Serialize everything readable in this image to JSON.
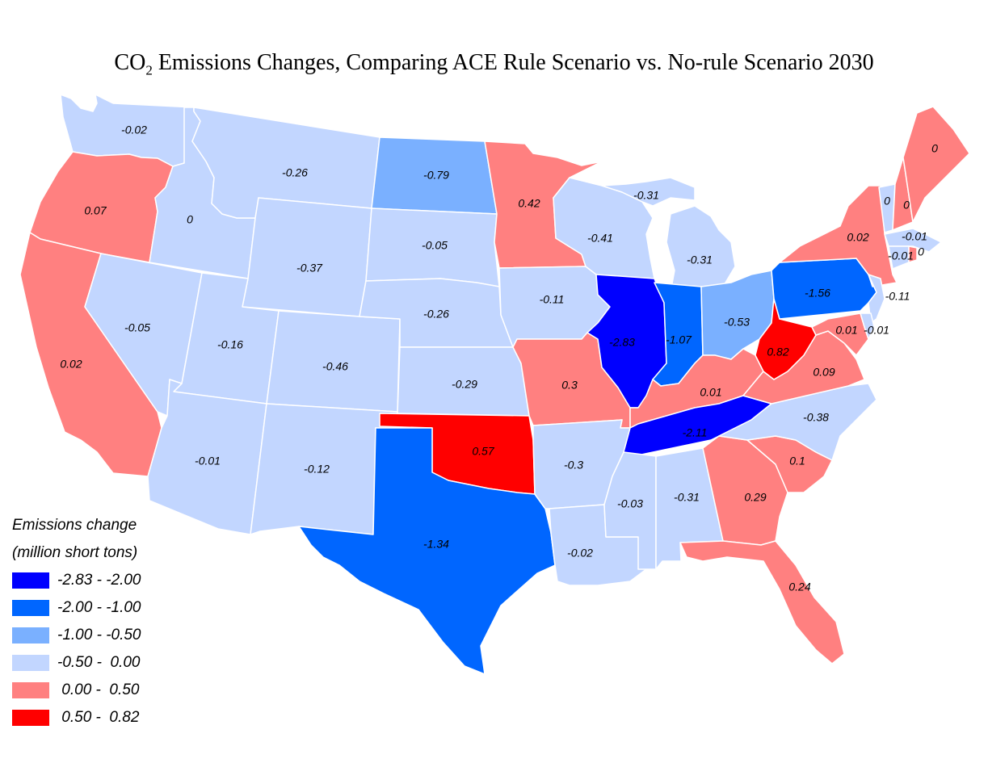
{
  "title": {
    "main": "CO",
    "sub": "2",
    "rest": " Emissions Changes, Comparing ACE Rule Scenario vs. No-rule Scenario 2030"
  },
  "legend": {
    "title": "Emissions change",
    "subtitle": "(million short tons)",
    "bins": [
      {
        "label": "-2.83 - -2.00",
        "color": "#0000FF",
        "min": -2.83,
        "max": -2.0
      },
      {
        "label": "-2.00 - -1.00",
        "color": "#0066FF",
        "min": -2.0,
        "max": -1.0
      },
      {
        "label": "-1.00 - -0.50",
        "color": "#7AB0FF",
        "min": -1.0,
        "max": -0.5
      },
      {
        "label": "-0.50 -  0.00",
        "color": "#C2D6FF",
        "min": -0.5,
        "max": 0.0
      },
      {
        "label": " 0.00 -  0.50",
        "color": "#FF8080",
        "min": 0.0,
        "max": 0.5
      },
      {
        "label": " 0.50 -  0.82",
        "color": "#FF0000",
        "min": 0.5,
        "max": 0.82
      }
    ]
  },
  "states": {
    "WA": "-0.02",
    "OR": "0.07",
    "CA": "0.02",
    "ID": "0",
    "NV": "-0.05",
    "MT": "-0.26",
    "WY": "-0.37",
    "UT": "-0.16",
    "AZ": "-0.01",
    "CO": "-0.46",
    "NM": "-0.12",
    "ND": "-0.79",
    "SD": "-0.05",
    "NE": "-0.26",
    "KS": "-0.29",
    "OK": "0.57",
    "TX": "-1.34",
    "MN": "0.42",
    "IA": "-0.11",
    "MO": "0.3",
    "AR": "-0.3",
    "LA": "-0.02",
    "WI": "-0.41",
    "MI": "-0.31",
    "MI_UP": "-0.31",
    "IL": "-2.83",
    "IN": "-1.07",
    "OH": "-0.53",
    "KY": "0.01",
    "TN": "-2.11",
    "MS": "-0.03",
    "AL": "-0.31",
    "GA": "0.29",
    "FL": "0.24",
    "SC": "0.1",
    "NC": "-0.38",
    "VA": "0.09",
    "WV": "0.82",
    "PA": "-1.56",
    "NY": "0.02",
    "NJ": "-0.11",
    "MD": "0.01",
    "DE": "-0.01",
    "VT": "0",
    "NH": "0",
    "ME": "0",
    "MA": "-0.01",
    "CT": "-0.01",
    "RI": "0"
  }
}
